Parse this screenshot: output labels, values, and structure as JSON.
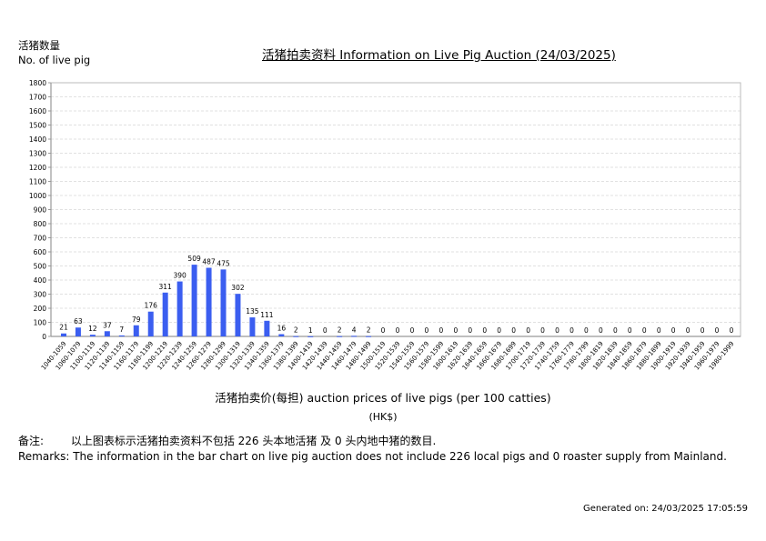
{
  "header": {
    "y_label_cn": "活猪数量",
    "y_label_en": "No. of live pig",
    "title": "活猪拍卖资料 Information on Live Pig Auction (24/03/2025)"
  },
  "axis": {
    "x_title": "活猪拍卖价(每担) auction prices of live pigs (per 100 catties)",
    "x_unit": "(HK$)"
  },
  "remarks": {
    "cn_label": "备注:",
    "cn_text": "以上图表标示活猪拍卖资料不包括 226 头本地活猪 及 0 头内地中猪的数目.",
    "en_text": "Remarks: The information in the bar chart on live pig auction does not include 226 local pigs and 0 roaster supply from Mainland."
  },
  "footer": {
    "generated": "Generated on: 24/03/2025 17:05:59"
  },
  "colors": {
    "bar": "#3b5ef0",
    "grid": "#d8d8d8",
    "axis": "#999999"
  },
  "chart_data": {
    "type": "bar",
    "title": "活猪拍卖资料 Information on Live Pig Auction (24/03/2025)",
    "xlabel": "活猪拍卖价(每担) auction prices of live pigs (per 100 catties) (HK$)",
    "ylabel": "活猪数量 No. of live pig",
    "ylim": [
      0,
      1800
    ],
    "yticks": [
      0,
      100,
      200,
      300,
      400,
      500,
      600,
      700,
      800,
      900,
      1000,
      1100,
      1200,
      1300,
      1400,
      1500,
      1600,
      1700,
      1800
    ],
    "grid": true,
    "legend": null,
    "categories": [
      "1040-1059",
      "1060-1079",
      "1100-1119",
      "1120-1139",
      "1140-1159",
      "1160-1179",
      "1180-1199",
      "1200-1219",
      "1220-1239",
      "1240-1259",
      "1260-1279",
      "1280-1299",
      "1300-1319",
      "1320-1339",
      "1340-1359",
      "1360-1379",
      "1380-1399",
      "1400-1419",
      "1420-1439",
      "1440-1459",
      "1460-1479",
      "1480-1499",
      "1500-1519",
      "1520-1539",
      "1540-1559",
      "1560-1579",
      "1580-1599",
      "1600-1619",
      "1620-1639",
      "1640-1659",
      "1660-1679",
      "1680-1699",
      "1700-1719",
      "1720-1739",
      "1740-1759",
      "1760-1779",
      "1780-1799",
      "1800-1819",
      "1820-1839",
      "1840-1859",
      "1860-1879",
      "1880-1899",
      "1900-1919",
      "1920-1939",
      "1940-1959",
      "1960-1979",
      "1980-1999"
    ],
    "values": [
      21,
      63,
      12,
      37,
      7,
      79,
      176,
      311,
      390,
      509,
      487,
      475,
      302,
      135,
      111,
      16,
      2,
      1,
      0,
      2,
      4,
      2,
      0,
      0,
      0,
      0,
      0,
      0,
      0,
      0,
      0,
      0,
      0,
      0,
      0,
      0,
      0,
      0,
      0,
      0,
      0,
      0,
      0,
      0,
      0,
      0,
      0
    ]
  }
}
